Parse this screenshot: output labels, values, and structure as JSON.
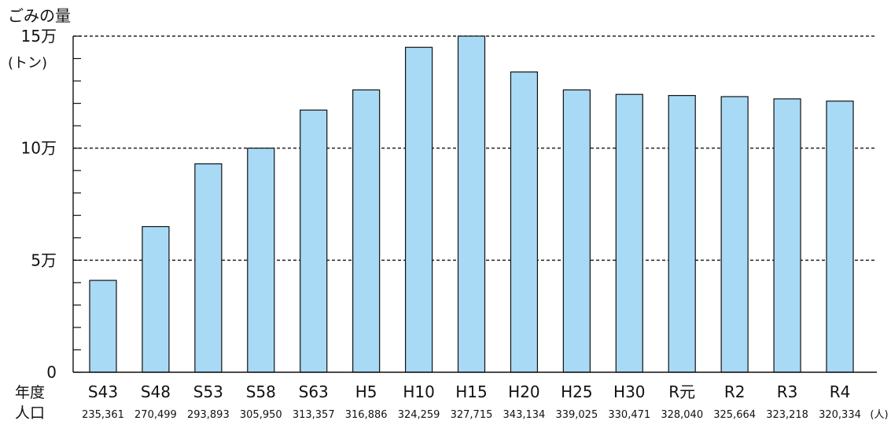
{
  "chart_data": {
    "type": "bar",
    "title": "",
    "ylabel": "ごみの量",
    "y_unit": "(トン)",
    "row_labels": {
      "year": "年度",
      "population": "人口"
    },
    "population_unit": "(人)",
    "ylim": [
      0,
      150000
    ],
    "yticks": [
      0,
      50000,
      100000,
      150000
    ],
    "ytick_labels": [
      "0",
      "5万",
      "10万",
      "15万"
    ],
    "ygrid_dashed_at": [
      50000,
      100000,
      150000
    ],
    "categories": [
      "S43",
      "S48",
      "S53",
      "S58",
      "S63",
      "H5",
      "H10",
      "H15",
      "H20",
      "H25",
      "H30",
      "R元",
      "R2",
      "R3",
      "R4"
    ],
    "population": [
      "235,361",
      "270,499",
      "293,893",
      "305,950",
      "313,357",
      "316,886",
      "324,259",
      "327,715",
      "343,134",
      "339,025",
      "330,471",
      "328,040",
      "325,664",
      "323,218",
      "320,334"
    ],
    "values": [
      41000,
      65000,
      93000,
      100000,
      117000,
      126000,
      145000,
      150000,
      134000,
      126000,
      124000,
      123500,
      123000,
      122000,
      121000
    ],
    "bar_color": "#a8daf5",
    "bar_stroke": "#111111",
    "legend": "none"
  }
}
